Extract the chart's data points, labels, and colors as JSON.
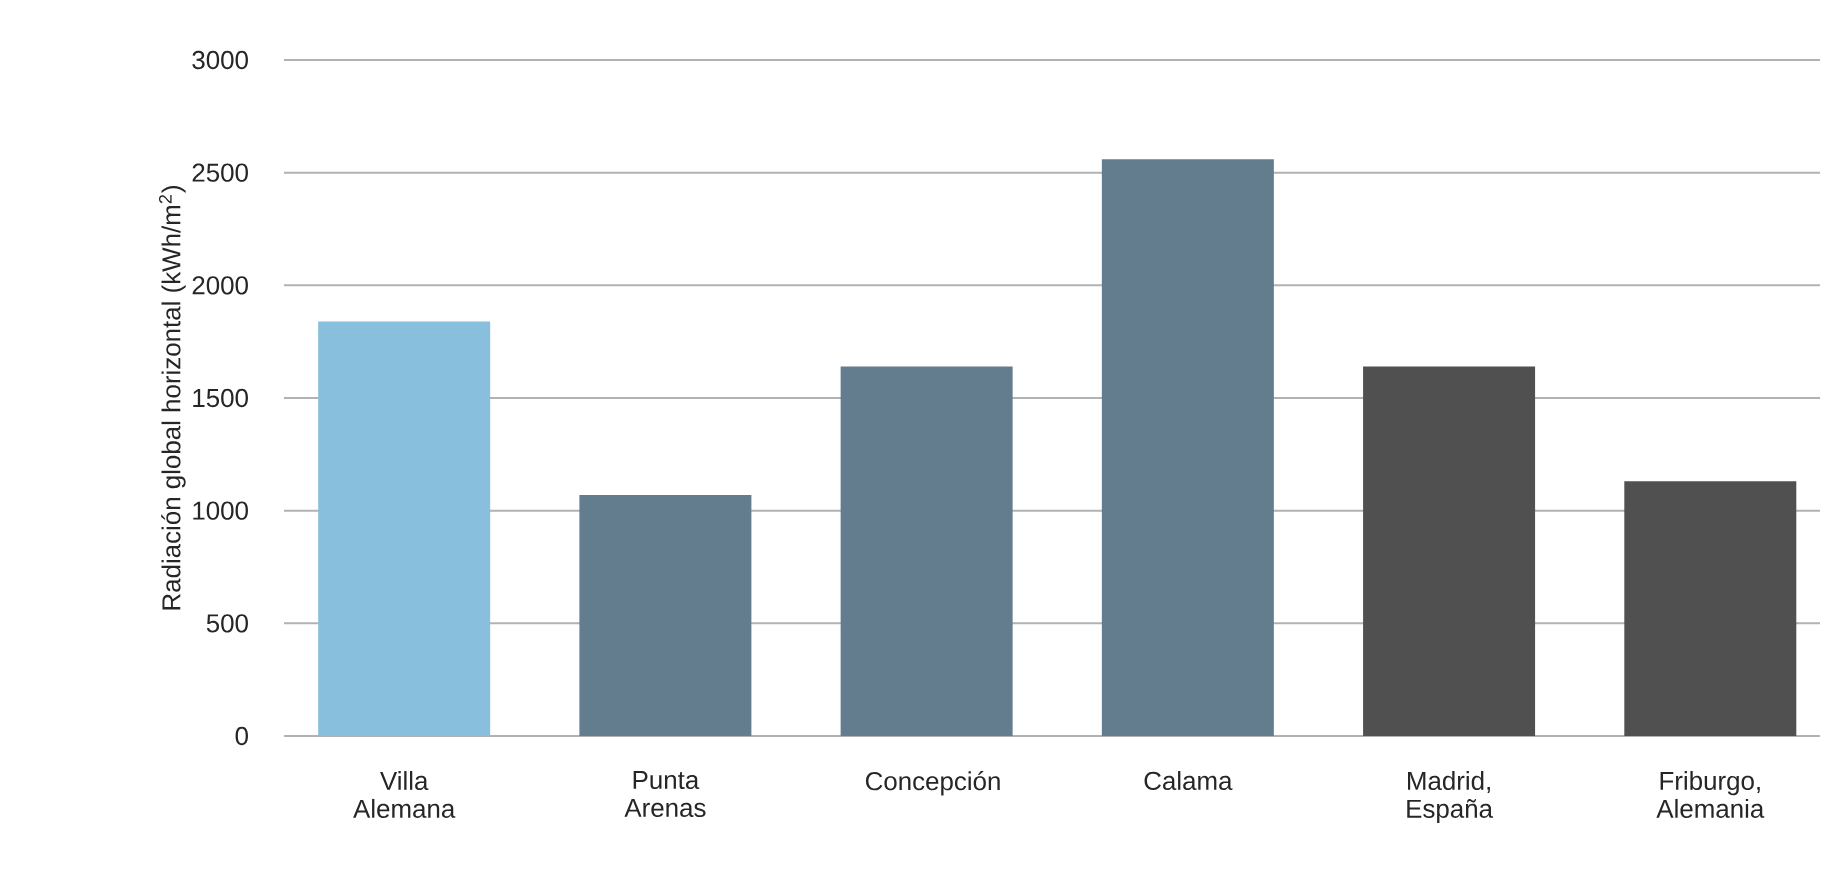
{
  "chart_data": {
    "type": "bar",
    "ylabel": "Radiación global horizontal (kWh/m$^{2}$)",
    "categories": [
      "Villa Alemana",
      "Punta Arenas",
      "Concepción",
      "Calama",
      "Madrid, España",
      "Friburgo, Alemania"
    ],
    "values": [
      1840,
      1070,
      1640,
      2560,
      1640,
      1130
    ],
    "colors": [
      "#88bfdc",
      "#637d8e",
      "#637d8e",
      "#637d8e",
      "#505050",
      "#505050"
    ],
    "ylim": [
      0,
      3000
    ],
    "yticks": [
      0,
      500,
      1000,
      1500,
      2000,
      2500,
      3000
    ],
    "grid": "y"
  }
}
